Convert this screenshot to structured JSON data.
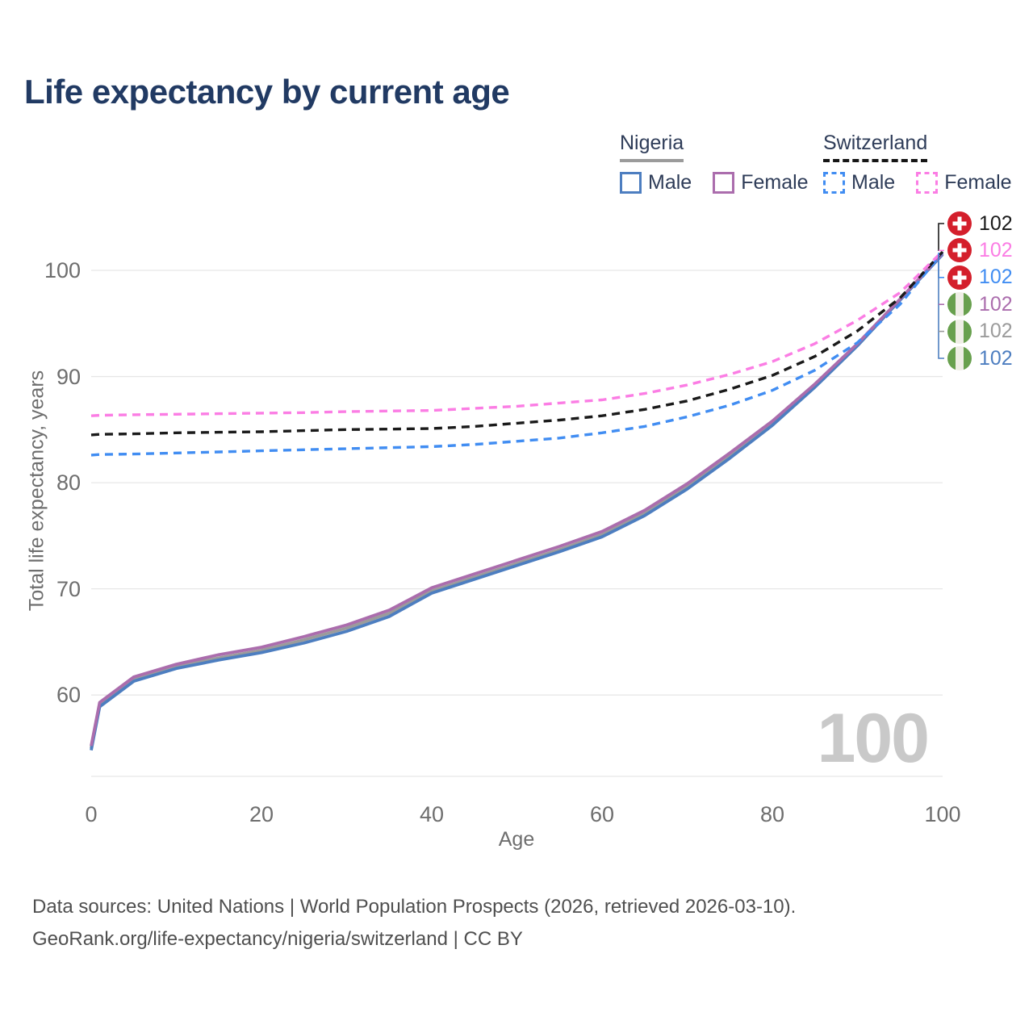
{
  "title": "Life expectancy by current age",
  "legend": {
    "nigeria": {
      "title": "Nigeria",
      "male": "Male",
      "female": "Female"
    },
    "switzerland": {
      "title": "Switzerland",
      "male": "Male",
      "female": "Female"
    }
  },
  "right_labels": [
    {
      "flag": "switzerland",
      "value": "102",
      "color": "#1a1a1a"
    },
    {
      "flag": "switzerland",
      "value": "102",
      "color": "#fb7de4"
    },
    {
      "flag": "switzerland",
      "value": "102",
      "color": "#418df2"
    },
    {
      "flag": "nigeria",
      "value": "102",
      "color": "#ab6dad"
    },
    {
      "flag": "nigeria",
      "value": "102",
      "color": "#9b9b9b"
    },
    {
      "flag": "nigeria",
      "value": "102",
      "color": "#4d7ec0"
    }
  ],
  "watermark": "100",
  "footer": {
    "line1": "Data sources: United Nations | World Population Prospects (2026, retrieved 2026-03-10).",
    "line2": "GeoRank.org/life-expectancy/nigeria/switzerland | CC BY"
  },
  "colors": {
    "title_text": "#213a63",
    "legend_text": "#2e3c58",
    "axis_text": "#6e6e6e",
    "gridline": "#e7e7e7",
    "watermark": "#c9c9c9",
    "footer_text": "#4f4f4f",
    "nigeria_underline": "#9b9b9b",
    "switzerland_underline": "#151515",
    "swiss_flag_red": "#d41f2c",
    "nigeria_flag_green": "#68a04e"
  },
  "chart_data": {
    "type": "line",
    "title": "Life expectancy by current age",
    "xlabel": "Age",
    "ylabel": "Total life expectancy, years",
    "xlim": [
      0,
      100
    ],
    "ylim": [
      52,
      105
    ],
    "x_ticks": [
      0,
      20,
      40,
      60,
      80,
      100
    ],
    "y_ticks": [
      60,
      70,
      80,
      90,
      100
    ],
    "grid": "horizontal",
    "legend_position": "top-right",
    "end_value_label": "102",
    "x": [
      0,
      1,
      5,
      10,
      15,
      20,
      25,
      30,
      35,
      40,
      45,
      50,
      55,
      60,
      65,
      70,
      75,
      80,
      85,
      90,
      95,
      100
    ],
    "series": [
      {
        "name": "Nigeria Total",
        "country": "Nigeria",
        "group": "total",
        "style": "solid",
        "color": "#9b9b9b",
        "values": [
          55.0,
          59.1,
          61.5,
          62.7,
          63.5,
          64.2,
          65.2,
          66.3,
          67.7,
          69.8,
          71.1,
          72.4,
          73.7,
          75.1,
          77.1,
          79.6,
          82.5,
          85.6,
          89.1,
          93.0,
          97.2,
          101.55
        ]
      },
      {
        "name": "Nigeria Male",
        "country": "Nigeria",
        "group": "male",
        "style": "solid",
        "color": "#4d7ec0",
        "values": [
          54.8,
          58.9,
          61.3,
          62.5,
          63.3,
          64.0,
          64.9,
          66.0,
          67.4,
          69.6,
          70.9,
          72.2,
          73.5,
          74.9,
          76.9,
          79.4,
          82.3,
          85.4,
          89.0,
          92.9,
          97.2,
          101.5
        ]
      },
      {
        "name": "Nigeria Female",
        "country": "Nigeria",
        "group": "female",
        "style": "solid",
        "color": "#ab6dad",
        "values": [
          55.2,
          59.3,
          61.7,
          62.9,
          63.8,
          64.5,
          65.5,
          66.6,
          68.0,
          70.1,
          71.4,
          72.7,
          74.0,
          75.4,
          77.4,
          79.9,
          82.8,
          85.8,
          89.3,
          93.1,
          97.3,
          101.6
        ]
      },
      {
        "name": "Switzerland Male",
        "country": "Switzerland",
        "group": "male",
        "style": "dashed",
        "color": "#418df2",
        "values": [
          82.6,
          82.65,
          82.7,
          82.8,
          82.9,
          83.0,
          83.1,
          83.2,
          83.3,
          83.4,
          83.6,
          83.9,
          84.2,
          84.7,
          85.3,
          86.2,
          87.3,
          88.7,
          90.6,
          93.2,
          96.8,
          101.7
        ]
      },
      {
        "name": "Switzerland Total",
        "country": "Switzerland",
        "group": "total",
        "style": "dashed",
        "color": "#1a1a1a",
        "values": [
          84.5,
          84.55,
          84.6,
          84.7,
          84.75,
          84.8,
          84.9,
          85.0,
          85.05,
          85.1,
          85.3,
          85.6,
          85.9,
          86.3,
          86.9,
          87.7,
          88.8,
          90.1,
          91.9,
          94.3,
          97.4,
          101.75
        ]
      },
      {
        "name": "Switzerland Female",
        "country": "Switzerland",
        "group": "female",
        "style": "dashed",
        "color": "#fb7de4",
        "values": [
          86.3,
          86.35,
          86.4,
          86.45,
          86.5,
          86.55,
          86.6,
          86.7,
          86.75,
          86.8,
          87.0,
          87.2,
          87.5,
          87.8,
          88.4,
          89.2,
          90.2,
          91.4,
          93.1,
          95.3,
          97.9,
          101.8
        ]
      }
    ]
  }
}
